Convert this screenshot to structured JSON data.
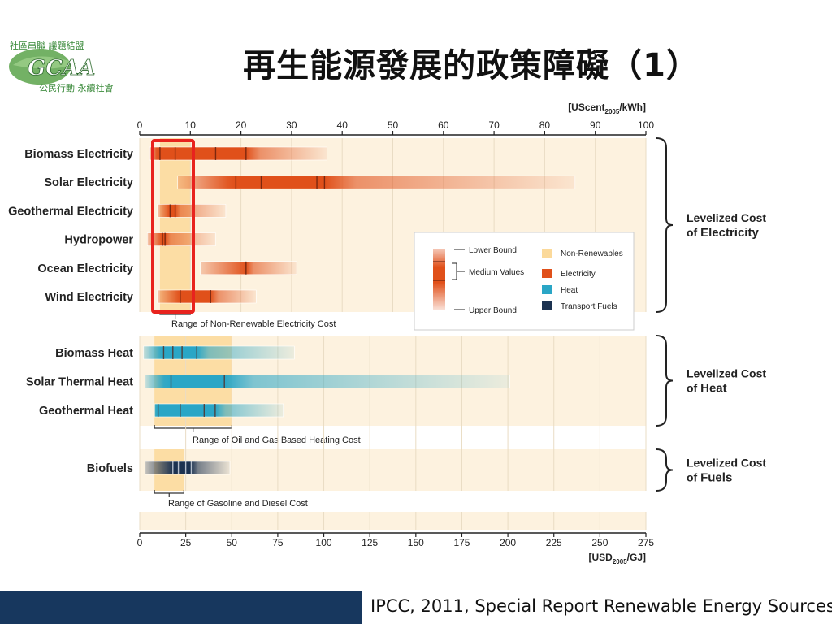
{
  "slide": {
    "title": "再生能源發展的政策障礙（1）",
    "citation": "IPCC, 2011, Special Report Renewable Energy Sources",
    "logo": {
      "top_text": "社區串聯 議題結盟",
      "bottom_text": "公民行動 永續社會",
      "mark": "GCAA"
    }
  },
  "chart_data": {
    "type": "range-bar",
    "top_axis": {
      "unit_prefix": "[UScent",
      "unit_sub": "2005",
      "unit_suffix": "/kWh]",
      "min": 0,
      "max": 100,
      "ticks": [
        0,
        10,
        20,
        30,
        40,
        50,
        60,
        70,
        80,
        90,
        100
      ]
    },
    "bottom_axis": {
      "unit_prefix": "[USD",
      "unit_sub": "2005",
      "unit_suffix": "/GJ]",
      "min": 0,
      "max": 275,
      "ticks": [
        0,
        25,
        50,
        75,
        100,
        125,
        150,
        175,
        200,
        225,
        250,
        275
      ]
    },
    "groups": [
      {
        "id": "electricity",
        "axis": "top",
        "bracket_line1": "Levelized Cost",
        "bracket_line2_prefix": "of ",
        "bracket_line2_bold": "Electricity",
        "nonrenewable_range": [
          4,
          10
        ],
        "range_label": "Range of Non-Renewable Electricity Cost",
        "color": "#e0501a",
        "rows": [
          {
            "label": "Biomass Electricity",
            "lower": 2,
            "upper": 37,
            "medians": [
              4,
              7,
              15,
              21
            ]
          },
          {
            "label": "Solar Electricity",
            "lower": 7.5,
            "upper": 86,
            "medians": [
              19,
              24,
              35,
              36.5
            ]
          },
          {
            "label": "Geothermal Electricity",
            "lower": 3.5,
            "upper": 17,
            "medians": [
              6,
              7
            ]
          },
          {
            "label": "Hydropower",
            "lower": 1.5,
            "upper": 15,
            "medians": [
              4.5,
              5
            ]
          },
          {
            "label": "Ocean Electricity",
            "lower": 12,
            "upper": 31,
            "medians": [
              21
            ]
          },
          {
            "label": "Wind Electricity",
            "lower": 3.5,
            "upper": 23,
            "medians": [
              8,
              14
            ]
          }
        ]
      },
      {
        "id": "heat",
        "axis": "bottom",
        "bracket_line1": "Levelized Cost",
        "bracket_line2_prefix": "of ",
        "bracket_line2_bold": "Heat",
        "nonrenewable_range": [
          8,
          50
        ],
        "range_label": "Range of Oil and Gas Based Heating Cost",
        "color": "#2aa6c6",
        "rows": [
          {
            "label": "Biomass Heat",
            "lower": 2,
            "upper": 84,
            "medians": [
              13,
              18,
              23,
              31
            ]
          },
          {
            "label": "Solar Thermal Heat",
            "lower": 3,
            "upper": 201,
            "medians": [
              17,
              46
            ]
          },
          {
            "label": "Geothermal Heat",
            "lower": 8,
            "upper": 78,
            "medians": [
              10,
              22,
              35,
              41
            ]
          }
        ]
      },
      {
        "id": "fuels",
        "axis": "bottom",
        "bracket_line1": "Levelized Cost",
        "bracket_line2_prefix": "of ",
        "bracket_line2_bold": "Fuels",
        "nonrenewable_range": [
          8,
          24
        ],
        "range_label": "Range of Gasoline and Diesel Cost",
        "color": "#1c3250",
        "rows": [
          {
            "label": "Biofuels",
            "lower": 3,
            "upper": 49,
            "medians": [
              18,
              21,
              25,
              28
            ]
          }
        ]
      }
    ],
    "legend": {
      "lower_bound": "Lower Bound",
      "medium_values": "Medium Values",
      "upper_bound": "Upper Bound",
      "entries": [
        {
          "label": "Non-Renewables",
          "color": "#fbd99a"
        },
        {
          "label": "Electricity",
          "color": "#e0501a"
        },
        {
          "label": "Heat",
          "color": "#2aa6c6"
        },
        {
          "label": "Transport Fuels",
          "color": "#1c3250"
        }
      ]
    },
    "highlight_box_color": "#e8231e"
  }
}
